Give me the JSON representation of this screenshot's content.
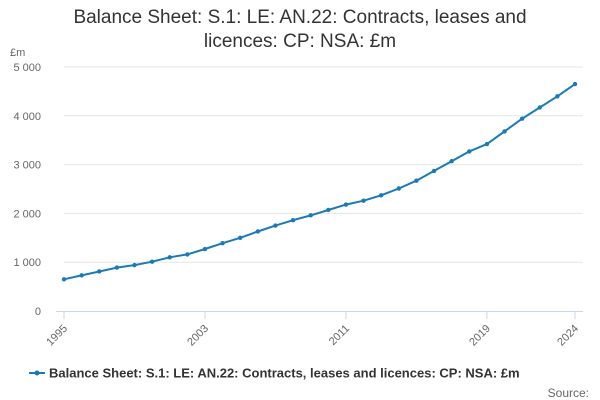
{
  "chart_data": {
    "type": "line",
    "title_lines": [
      "Balance Sheet: S.1: LE: AN.22: Contracts, leases and",
      "licences: CP: NSA: £m"
    ],
    "ylabel": "£m",
    "ylim": [
      0,
      5000
    ],
    "y_ticks": [
      0,
      1000,
      2000,
      3000,
      4000,
      5000
    ],
    "y_tick_labels": [
      "0",
      "1 000",
      "2 000",
      "3 000",
      "4 000",
      "5 000"
    ],
    "x_ticks": [
      1995,
      2003,
      2011,
      2019,
      2024
    ],
    "x_tick_labels": [
      "1995",
      "2003",
      "2011",
      "2019",
      "2024"
    ],
    "xlim": [
      1995,
      2024
    ],
    "grid": true,
    "legend_position": "bottom",
    "color": "#1a7bb4",
    "series": [
      {
        "name": "Balance Sheet: S.1: LE: AN.22: Contracts, leases and licences: CP: NSA: £m",
        "x": [
          1995,
          1996,
          1997,
          1998,
          1999,
          2000,
          2001,
          2002,
          2003,
          2004,
          2005,
          2006,
          2007,
          2008,
          2009,
          2010,
          2011,
          2012,
          2013,
          2014,
          2015,
          2016,
          2017,
          2018,
          2019,
          2020,
          2021,
          2022,
          2023,
          2024
        ],
        "values": [
          650,
          730,
          810,
          890,
          940,
          1010,
          1100,
          1160,
          1270,
          1390,
          1500,
          1630,
          1750,
          1860,
          1960,
          2070,
          2180,
          2260,
          2370,
          2510,
          2670,
          2870,
          3070,
          3270,
          3420,
          3680,
          3940,
          4170,
          4400,
          4650
        ]
      }
    ],
    "source_label": "Source:"
  }
}
